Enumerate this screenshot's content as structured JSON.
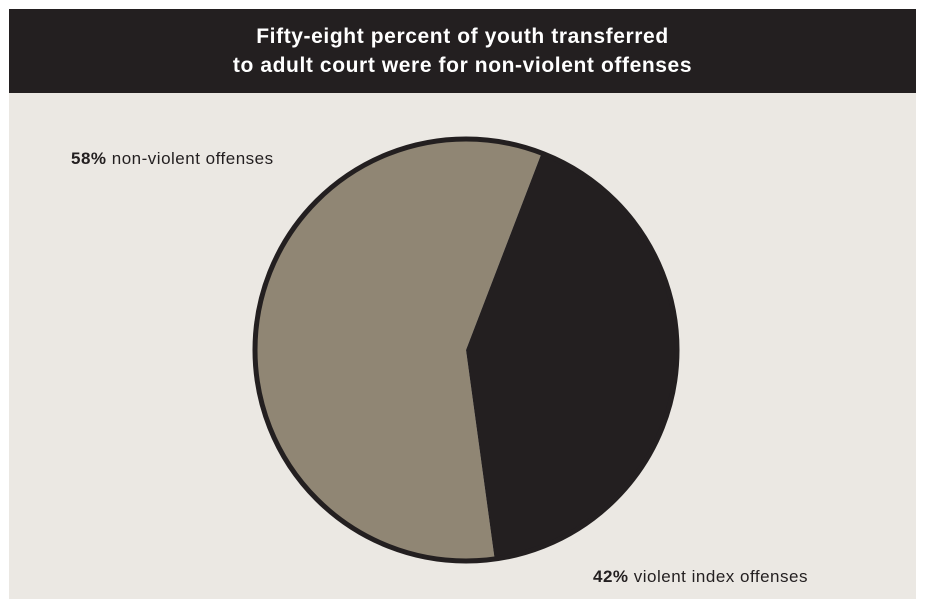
{
  "colors": {
    "background": "#ebe8e3",
    "header": "#231f20",
    "header_text": "#ffffff",
    "non_violent": "#908674",
    "violent": "#231f20"
  },
  "chart_data": {
    "type": "pie",
    "title": "Fifty-eight percent of youth transferred to adult court were for non-violent offenses",
    "title_lines": [
      "Fifty-eight percent of youth transferred",
      "to adult court were for non-violent offenses"
    ],
    "slices": [
      {
        "pct_label": "58%",
        "text": "non-violent offenses",
        "value": 58,
        "color": "#908674"
      },
      {
        "pct_label": "42%",
        "text": "violent index offenses",
        "value": 42,
        "color": "#231f20"
      }
    ]
  }
}
